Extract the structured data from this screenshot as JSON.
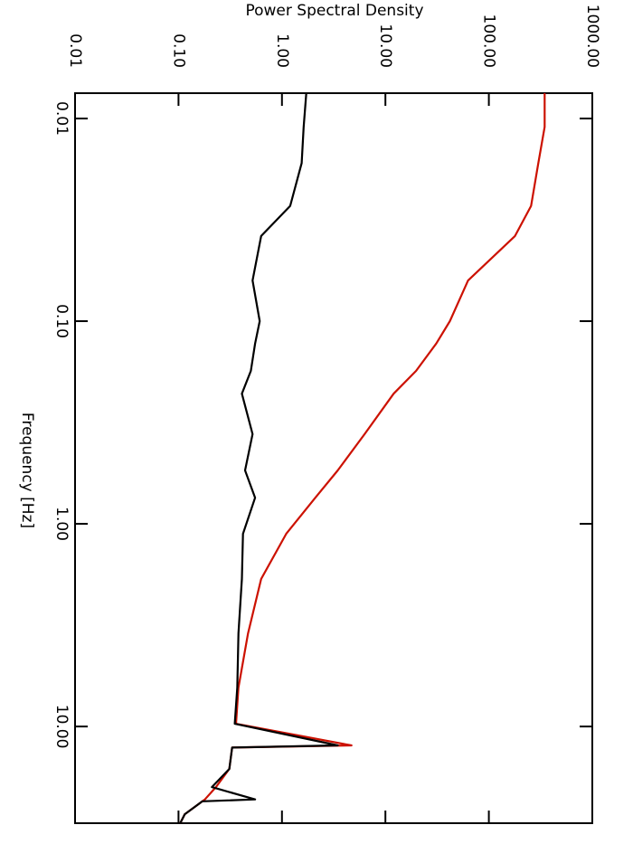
{
  "chart_data": {
    "type": "line",
    "title": "Power Spectral Density",
    "xlabel": "Frequency [Hz]",
    "xlog": true,
    "ylog": true,
    "xlim": [
      0.0075,
      30
    ],
    "ylim": [
      0.01,
      1000
    ],
    "xticks": [
      0.01,
      {
        "value": 0.1,
        "label": "0.10"
      },
      {
        "value": 1,
        "label": "1.00"
      },
      {
        "value": 10,
        "label": "10.00"
      }
    ],
    "yticks": [
      0.01,
      {
        "value": 0.1,
        "label": "0.10"
      },
      {
        "value": 1,
        "label": "1.00"
      },
      {
        "value": 10,
        "label": "10.00"
      },
      {
        "value": 100,
        "label": "100.00"
      },
      {
        "value": 1000,
        "label": "1000.00"
      }
    ],
    "x": [
      0.0075,
      0.011,
      0.0166,
      0.027,
      0.038,
      0.063,
      0.1,
      0.129,
      0.176,
      0.228,
      0.361,
      0.545,
      0.743,
      1.12,
      1.87,
      3.47,
      6.42,
      9.7,
      12.4,
      12.7,
      16.2,
      19.9,
      22.9,
      23.4,
      27.1,
      30
    ],
    "series": [
      {
        "color": "#cc1100",
        "values": [
          346,
          346,
          301,
          256,
          179,
          63,
          42,
          31,
          19.8,
          12.0,
          6.3,
          3.46,
          2.1,
          1.1,
          0.63,
          0.47,
          0.38,
          0.36,
          4.7,
          0.33,
          0.31,
          0.23,
          0.18,
          0.17,
          0.115,
          0.104
        ]
      },
      {
        "color": "#000000",
        "values": [
          1.72,
          1.62,
          1.55,
          1.2,
          0.63,
          0.52,
          0.61,
          0.55,
          0.5,
          0.41,
          0.52,
          0.44,
          0.55,
          0.42,
          0.41,
          0.38,
          0.37,
          0.35,
          3.46,
          0.33,
          0.31,
          0.21,
          0.55,
          0.17,
          0.115,
          0.104
        ]
      }
    ]
  }
}
